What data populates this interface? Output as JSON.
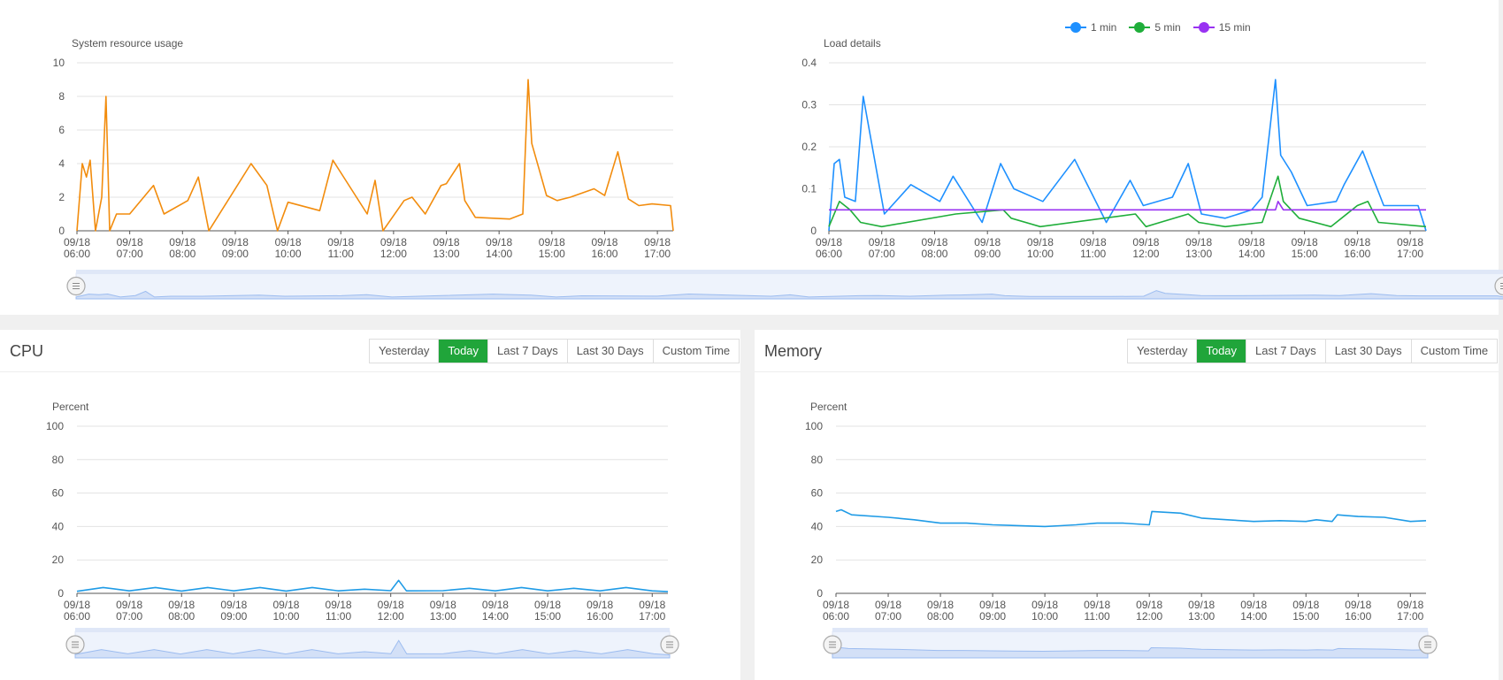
{
  "colors": {
    "accent": "#20a53a",
    "orange": "#f28c0d",
    "blue": "#1e90ff",
    "green": "#1fae3a",
    "purple": "#9932f2",
    "cpu_blue": "#1f9be6",
    "zoom_fill": "#dce6f8",
    "zoom_line": "#8eb3f0"
  },
  "time_ticks": [
    {
      "date": "09/18",
      "time": "06:00"
    },
    {
      "date": "09/18",
      "time": "07:00"
    },
    {
      "date": "09/18",
      "time": "08:00"
    },
    {
      "date": "09/18",
      "time": "09:00"
    },
    {
      "date": "09/18",
      "time": "10:00"
    },
    {
      "date": "09/18",
      "time": "11:00"
    },
    {
      "date": "09/18",
      "time": "12:00"
    },
    {
      "date": "09/18",
      "time": "13:00"
    },
    {
      "date": "09/18",
      "time": "14:00"
    },
    {
      "date": "09/18",
      "time": "15:00"
    },
    {
      "date": "09/18",
      "time": "16:00"
    },
    {
      "date": "09/18",
      "time": "17:00"
    }
  ],
  "load_chart": {
    "title": "System resource usage"
  },
  "details_chart": {
    "title": "Load details",
    "legend": [
      {
        "name": "1 min",
        "color": "#1e90ff"
      },
      {
        "name": "5 min",
        "color": "#1fae3a"
      },
      {
        "name": "15 min",
        "color": "#9932f2"
      }
    ]
  },
  "cpu_card": {
    "title": "CPU",
    "ylabel": "Percent"
  },
  "mem_card": {
    "title": "Memory",
    "ylabel": "Percent"
  },
  "range_buttons": [
    {
      "label": "Yesterday",
      "active": false
    },
    {
      "label": "Today",
      "active": true
    },
    {
      "label": "Last 7 Days",
      "active": false
    },
    {
      "label": "Last 30 Days",
      "active": false
    },
    {
      "label": "Custom Time",
      "active": false
    }
  ],
  "chart_data": [
    {
      "type": "line",
      "title": "System resource usage",
      "xlabel": "",
      "ylabel": "",
      "ylim": [
        0,
        10
      ],
      "yticks": [
        0,
        2,
        4,
        6,
        8,
        10
      ],
      "grid": true,
      "series": [
        {
          "values": [
            [
              6.0,
              0
            ],
            [
              6.1,
              4
            ],
            [
              6.18,
              3.2
            ],
            [
              6.25,
              4.2
            ],
            [
              6.35,
              0
            ],
            [
              6.47,
              2
            ],
            [
              6.55,
              8
            ],
            [
              6.62,
              0
            ],
            [
              6.75,
              1
            ],
            [
              7.0,
              1
            ],
            [
              7.45,
              2.7
            ],
            [
              7.65,
              1
            ],
            [
              8.1,
              1.8
            ],
            [
              8.3,
              3.2
            ],
            [
              8.5,
              0
            ],
            [
              9.3,
              4
            ],
            [
              9.6,
              2.7
            ],
            [
              9.8,
              0
            ],
            [
              10.0,
              1.7
            ],
            [
              10.6,
              1.2
            ],
            [
              10.85,
              4.2
            ],
            [
              11.5,
              1
            ],
            [
              11.65,
              3
            ],
            [
              11.8,
              0
            ],
            [
              12.2,
              1.8
            ],
            [
              12.35,
              2
            ],
            [
              12.6,
              1
            ],
            [
              12.9,
              2.7
            ],
            [
              13.0,
              2.8
            ],
            [
              13.25,
              4
            ],
            [
              13.35,
              1.8
            ],
            [
              13.55,
              0.8
            ],
            [
              14.2,
              0.7
            ],
            [
              14.45,
              1
            ],
            [
              14.55,
              9
            ],
            [
              14.62,
              5.2
            ],
            [
              14.8,
              3.2
            ],
            [
              14.9,
              2.1
            ],
            [
              15.1,
              1.8
            ],
            [
              15.35,
              2
            ],
            [
              15.8,
              2.5
            ],
            [
              16.0,
              2.1
            ],
            [
              16.25,
              4.7
            ],
            [
              16.45,
              1.9
            ],
            [
              16.65,
              1.5
            ],
            [
              16.9,
              1.6
            ],
            [
              17.25,
              1.5
            ],
            [
              17.3,
              0
            ]
          ]
        }
      ]
    },
    {
      "type": "line",
      "title": "Load details",
      "xlabel": "",
      "ylabel": "",
      "ylim": [
        0,
        0.4
      ],
      "yticks": [
        0,
        0.1,
        0.2,
        0.3,
        0.4
      ],
      "grid": true,
      "legend": "top-center",
      "series": [
        {
          "name": "1 min",
          "values": [
            [
              6.0,
              0
            ],
            [
              6.1,
              0.16
            ],
            [
              6.2,
              0.17
            ],
            [
              6.3,
              0.08
            ],
            [
              6.5,
              0.07
            ],
            [
              6.65,
              0.32
            ],
            [
              7.05,
              0.04
            ],
            [
              7.55,
              0.11
            ],
            [
              8.1,
              0.07
            ],
            [
              8.35,
              0.13
            ],
            [
              8.9,
              0.02
            ],
            [
              9.25,
              0.16
            ],
            [
              9.5,
              0.1
            ],
            [
              10.05,
              0.07
            ],
            [
              10.65,
              0.17
            ],
            [
              11.25,
              0.02
            ],
            [
              11.7,
              0.12
            ],
            [
              11.95,
              0.06
            ],
            [
              12.5,
              0.08
            ],
            [
              12.8,
              0.16
            ],
            [
              13.05,
              0.04
            ],
            [
              13.5,
              0.03
            ],
            [
              14.0,
              0.05
            ],
            [
              14.2,
              0.08
            ],
            [
              14.45,
              0.36
            ],
            [
              14.55,
              0.18
            ],
            [
              14.75,
              0.14
            ],
            [
              15.05,
              0.06
            ],
            [
              15.6,
              0.07
            ],
            [
              15.75,
              0.11
            ],
            [
              16.1,
              0.19
            ],
            [
              16.5,
              0.06
            ],
            [
              17.15,
              0.06
            ],
            [
              17.3,
              0
            ]
          ]
        },
        {
          "name": "5 min",
          "values": [
            [
              6.0,
              0.01
            ],
            [
              6.2,
              0.07
            ],
            [
              6.4,
              0.05
            ],
            [
              6.6,
              0.02
            ],
            [
              7.0,
              0.01
            ],
            [
              8.4,
              0.04
            ],
            [
              9.3,
              0.05
            ],
            [
              9.45,
              0.03
            ],
            [
              10.0,
              0.01
            ],
            [
              11.8,
              0.04
            ],
            [
              12.0,
              0.01
            ],
            [
              12.8,
              0.04
            ],
            [
              13.0,
              0.02
            ],
            [
              13.5,
              0.01
            ],
            [
              14.2,
              0.02
            ],
            [
              14.5,
              0.13
            ],
            [
              14.6,
              0.07
            ],
            [
              14.9,
              0.03
            ],
            [
              15.5,
              0.01
            ],
            [
              16.0,
              0.06
            ],
            [
              16.2,
              0.07
            ],
            [
              16.4,
              0.02
            ],
            [
              17.3,
              0.01
            ]
          ]
        },
        {
          "name": "15 min",
          "values": [
            [
              6.0,
              0.05
            ],
            [
              14.45,
              0.05
            ],
            [
              14.5,
              0.07
            ],
            [
              14.6,
              0.05
            ],
            [
              17.3,
              0.05
            ]
          ]
        }
      ]
    },
    {
      "type": "line",
      "title": "CPU",
      "xlabel": "",
      "ylabel": "Percent",
      "ylim": [
        0,
        100
      ],
      "yticks": [
        0,
        20,
        40,
        60,
        80,
        100
      ],
      "grid": true,
      "series": [
        {
          "values": [
            [
              6.0,
              1.2
            ],
            [
              6.5,
              3.5
            ],
            [
              7.0,
              1.5
            ],
            [
              7.5,
              3.5
            ],
            [
              8.0,
              1.4
            ],
            [
              8.5,
              3.5
            ],
            [
              9.0,
              1.5
            ],
            [
              9.5,
              3.5
            ],
            [
              10.0,
              1.4
            ],
            [
              10.5,
              3.5
            ],
            [
              11.0,
              1.5
            ],
            [
              11.5,
              2.5
            ],
            [
              12.0,
              1.6
            ],
            [
              12.15,
              7.8
            ],
            [
              12.3,
              1.5
            ],
            [
              13.0,
              1.6
            ],
            [
              13.5,
              3
            ],
            [
              14.0,
              1.5
            ],
            [
              14.5,
              3.5
            ],
            [
              15.0,
              1.5
            ],
            [
              15.5,
              3
            ],
            [
              16.0,
              1.5
            ],
            [
              16.5,
              3.5
            ],
            [
              17.0,
              1.5
            ],
            [
              17.3,
              1
            ]
          ]
        }
      ]
    },
    {
      "type": "line",
      "title": "Memory",
      "xlabel": "",
      "ylabel": "Percent",
      "ylim": [
        0,
        100
      ],
      "yticks": [
        0,
        20,
        40,
        60,
        80,
        100
      ],
      "grid": true,
      "series": [
        {
          "values": [
            [
              6.0,
              49
            ],
            [
              6.1,
              50
            ],
            [
              6.3,
              47
            ],
            [
              7.0,
              45.5
            ],
            [
              7.5,
              44
            ],
            [
              8.0,
              42
            ],
            [
              8.5,
              42
            ],
            [
              9.0,
              41
            ],
            [
              10.0,
              40
            ],
            [
              10.3,
              40.5
            ],
            [
              10.6,
              41
            ],
            [
              11.0,
              42
            ],
            [
              11.5,
              42
            ],
            [
              12.0,
              41
            ],
            [
              12.05,
              49
            ],
            [
              12.6,
              48
            ],
            [
              13.0,
              45
            ],
            [
              13.5,
              44
            ],
            [
              14.0,
              43
            ],
            [
              14.5,
              43.5
            ],
            [
              15.0,
              43
            ],
            [
              15.2,
              44
            ],
            [
              15.5,
              43
            ],
            [
              15.6,
              47
            ],
            [
              16.0,
              46
            ],
            [
              16.5,
              45.5
            ],
            [
              17.0,
              43
            ],
            [
              17.3,
              43.5
            ]
          ]
        }
      ]
    }
  ]
}
